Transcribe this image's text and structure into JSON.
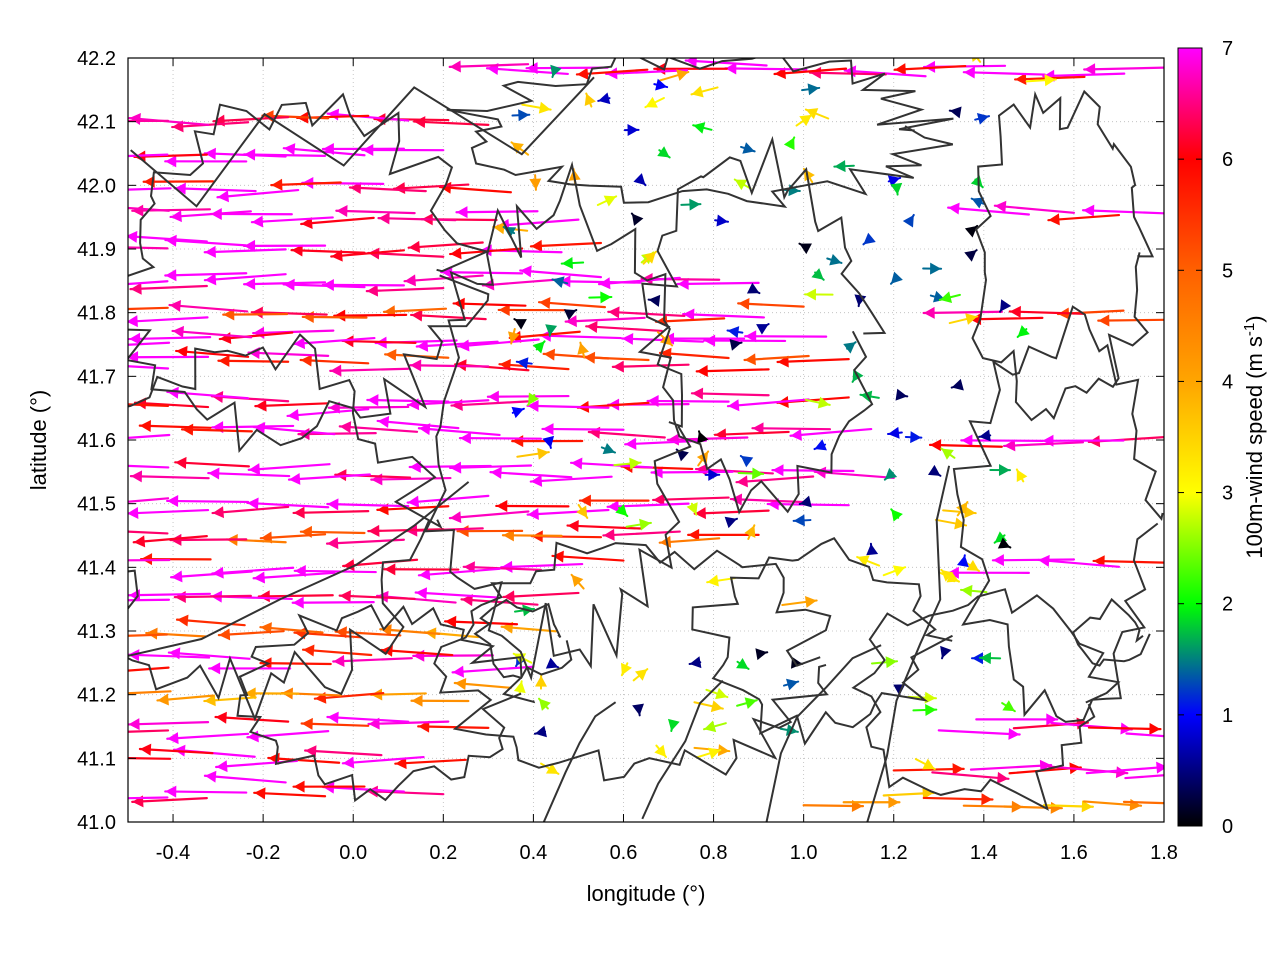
{
  "chart_data": {
    "type": "vector-field",
    "xlabel": "longitude (°)",
    "ylabel": "latitude (°)",
    "xlim": [
      -0.5,
      1.8
    ],
    "ylim": [
      41.0,
      42.2
    ],
    "xticks": [
      "-0.4",
      "-0.2",
      "0.0",
      "0.2",
      "0.4",
      "0.6",
      "0.8",
      "1.0",
      "1.2",
      "1.4",
      "1.6",
      "1.8"
    ],
    "xtick_values": [
      -0.4,
      -0.2,
      0.0,
      0.2,
      0.4,
      0.6,
      0.8,
      1.0,
      1.2,
      1.4,
      1.6,
      1.8
    ],
    "yticks": [
      "41.0",
      "41.1",
      "41.2",
      "41.3",
      "41.4",
      "41.5",
      "41.6",
      "41.7",
      "41.8",
      "41.9",
      "42.0",
      "42.1",
      "42.2"
    ],
    "ytick_values": [
      41.0,
      41.1,
      41.2,
      41.3,
      41.4,
      41.5,
      41.6,
      41.7,
      41.8,
      41.9,
      42.0,
      42.1,
      42.2
    ],
    "grid": true,
    "colorbar": {
      "label_main": "100m-wind speed (m s",
      "label_sup": "-1",
      "label_end": ")",
      "range": [
        0,
        7
      ],
      "ticks": [
        "0",
        "1",
        "2",
        "3",
        "4",
        "5",
        "6",
        "7"
      ],
      "tick_values": [
        0,
        1,
        2,
        3,
        4,
        5,
        6,
        7
      ],
      "colors": [
        "#000000",
        "#0000ff",
        "#00ff00",
        "#ffff00",
        "#ffa500",
        "#ff6000",
        "#ff0000",
        "#ff00ff"
      ]
    },
    "contour_color": "#333333",
    "description_units": "longitude degrees, latitude degrees, wind speed m/s",
    "streams": [
      {
        "lat": 42.18,
        "lon_start": 1.8,
        "lon_end": 0.3,
        "speed": 6.5
      },
      {
        "lat": 42.1,
        "lon_start": 0.3,
        "lon_end": -0.5,
        "speed": 6.5
      },
      {
        "lat": 42.05,
        "lon_start": 0.2,
        "lon_end": -0.5,
        "speed": 6.8
      },
      {
        "lat": 42.0,
        "lon_start": 0.35,
        "lon_end": -0.5,
        "speed": 6.9
      },
      {
        "lat": 41.95,
        "lon_start": 0.5,
        "lon_end": -0.5,
        "speed": 7.0
      },
      {
        "lat": 41.9,
        "lon_start": 0.55,
        "lon_end": -0.5,
        "speed": 6.7
      },
      {
        "lat": 41.85,
        "lon_start": 0.9,
        "lon_end": -0.5,
        "speed": 7.0
      },
      {
        "lat": 41.8,
        "lon_start": 1.0,
        "lon_end": -0.5,
        "speed": 6.0
      },
      {
        "lat": 41.76,
        "lon_start": 1.05,
        "lon_end": -0.5,
        "speed": 7.0
      },
      {
        "lat": 41.72,
        "lon_start": 1.1,
        "lon_end": -0.5,
        "speed": 6.2
      },
      {
        "lat": 41.66,
        "lon_start": 1.1,
        "lon_end": -0.5,
        "speed": 7.0
      },
      {
        "lat": 41.61,
        "lon_start": 1.15,
        "lon_end": -0.5,
        "speed": 6.9
      },
      {
        "lat": 41.55,
        "lon_start": 1.2,
        "lon_end": -0.5,
        "speed": 7.0
      },
      {
        "lat": 41.5,
        "lon_start": 1.1,
        "lon_end": -0.5,
        "speed": 6.8
      },
      {
        "lat": 41.45,
        "lon_start": 0.9,
        "lon_end": -0.5,
        "speed": 5.5
      },
      {
        "lat": 41.4,
        "lon_start": 0.6,
        "lon_end": -0.5,
        "speed": 6.9
      },
      {
        "lat": 41.35,
        "lon_start": 0.5,
        "lon_end": -0.5,
        "speed": 7.0
      },
      {
        "lat": 41.3,
        "lon_start": 0.45,
        "lon_end": -0.5,
        "speed": 5.0
      },
      {
        "lat": 41.25,
        "lon_start": 0.4,
        "lon_end": -0.5,
        "speed": 6.8
      },
      {
        "lat": 41.2,
        "lon_start": 0.35,
        "lon_end": -0.5,
        "speed": 4.8
      },
      {
        "lat": 41.15,
        "lon_start": 0.3,
        "lon_end": -0.5,
        "speed": 6.5
      },
      {
        "lat": 41.1,
        "lon_start": 0.25,
        "lon_end": -0.5,
        "speed": 7.0
      },
      {
        "lat": 41.05,
        "lon_start": 0.2,
        "lon_end": -0.5,
        "speed": 6.9
      },
      {
        "lat": 41.15,
        "lon_start": 1.3,
        "lon_end": 1.8,
        "speed": 6.8
      },
      {
        "lat": 41.08,
        "lon_start": 1.2,
        "lon_end": 1.8,
        "speed": 6.2
      },
      {
        "lat": 41.03,
        "lon_start": 1.0,
        "lon_end": 1.8,
        "speed": 4.5
      },
      {
        "lat": 41.4,
        "lon_start": 1.8,
        "lon_end": 1.4,
        "speed": 6.9
      },
      {
        "lat": 41.6,
        "lon_start": 1.8,
        "lon_end": 1.35,
        "speed": 7.0
      },
      {
        "lat": 41.8,
        "lon_start": 1.8,
        "lon_end": 1.35,
        "speed": 6.0
      },
      {
        "lat": 41.95,
        "lon_start": 1.8,
        "lon_end": 1.4,
        "speed": 6.8
      }
    ]
  }
}
